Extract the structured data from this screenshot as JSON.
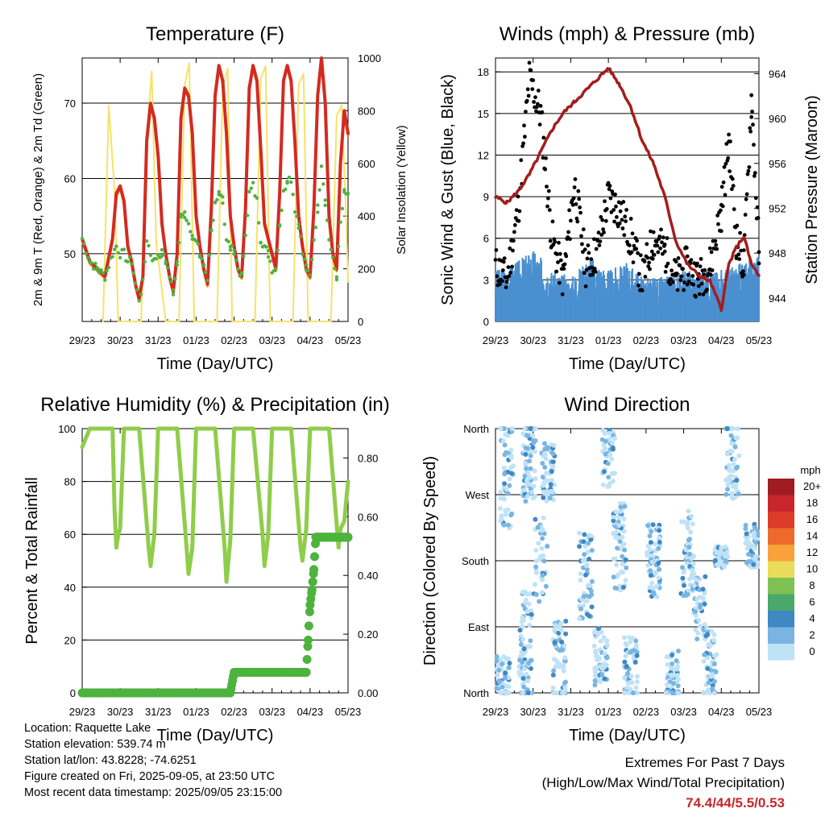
{
  "info": {
    "location": "Location: Raquette Lake",
    "elevation": "Station elevation: 539.74 m",
    "latlon": "Station lat/lon: 43.8228; -74.6251",
    "created": "Figure created on Fri, 2025-09-05, at 23:50 UTC",
    "recent": "Most recent data timestamp: 2025/09/05 23:15:00"
  },
  "extremes": {
    "line1": "Extremes For Past 7 Days",
    "line2": "(High/Low/Max Wind/Total Precipitation)",
    "values": "74.4/44/5.5/0.53",
    "color": "#c8262a"
  },
  "chart_data": [
    {
      "type": "line",
      "title": "Temperature (F)",
      "xlabel": "Time (Day/UTC)",
      "ylabel": "2m & 9m T (Red, Orange) & 2m Td (Green)",
      "y2label": "Solar Insolation (Yellow)",
      "x_ticks": [
        "29/23",
        "30/23",
        "31/23",
        "01/23",
        "02/23",
        "03/23",
        "04/23",
        "05/23"
      ],
      "ylim": [
        41,
        76
      ],
      "y_ticks": [
        50,
        60,
        70
      ],
      "y2lim": [
        0,
        1000
      ],
      "y2_ticks": [
        0,
        200,
        400,
        600,
        800,
        1000
      ],
      "colors": {
        "t2m": "#d42a20",
        "t9m": "#f07f1a",
        "td": "#4db33d",
        "solar": "#f6e26a"
      },
      "series": [
        {
          "key": "t2m",
          "x": [
            0,
            0.2,
            0.4,
            0.6,
            0.8,
            0.9,
            1.0,
            1.1,
            1.2,
            1.3,
            1.4,
            1.5,
            1.6,
            1.7,
            1.8,
            1.9,
            2.0,
            2.1,
            2.2,
            2.3,
            2.4,
            2.5,
            2.6,
            2.7,
            2.8,
            2.9,
            3.0,
            3.1,
            3.2,
            3.3,
            3.4,
            3.5,
            3.6,
            3.7,
            3.8,
            3.9,
            4.0,
            4.1,
            4.2,
            4.3,
            4.4,
            4.5,
            4.6,
            4.7,
            4.8,
            4.9,
            5.0,
            5.1,
            5.2,
            5.3,
            5.4,
            5.5,
            5.6,
            5.7,
            5.8,
            5.9,
            6.0,
            6.1,
            6.2,
            6.3,
            6.4,
            6.5,
            6.6,
            6.7,
            6.8,
            6.9,
            7.0
          ],
          "y": [
            52,
            49,
            48,
            47,
            52,
            58,
            59,
            57,
            51,
            49,
            46,
            44,
            47,
            65,
            70,
            68,
            63,
            54,
            50,
            47,
            45,
            50,
            68,
            72,
            71,
            66,
            55,
            51,
            48,
            46,
            56,
            71,
            75,
            73,
            66,
            55,
            51,
            48,
            47,
            56,
            72,
            75,
            73,
            64,
            54,
            52,
            50,
            48,
            58,
            73,
            75,
            73,
            65,
            55,
            51,
            48,
            47,
            56,
            71,
            76,
            70,
            55,
            50,
            48,
            62,
            69,
            66
          ]
        },
        {
          "key": "td",
          "x": [
            0,
            0.2,
            0.4,
            0.6,
            0.8,
            0.9,
            1.0,
            1.1,
            1.2,
            1.3,
            1.4,
            1.5,
            1.6,
            1.7,
            1.8,
            1.9,
            2.0,
            2.1,
            2.2,
            2.3,
            2.4,
            2.5,
            2.6,
            2.7,
            2.8,
            2.9,
            3.0,
            3.1,
            3.2,
            3.3,
            3.4,
            3.5,
            3.6,
            3.7,
            3.8,
            3.9,
            4.0,
            4.1,
            4.2,
            4.3,
            4.4,
            4.5,
            4.6,
            4.7,
            4.8,
            4.9,
            5.0,
            5.1,
            5.2,
            5.3,
            5.4,
            5.5,
            5.6,
            5.7,
            5.8,
            5.9,
            6.0,
            6.1,
            6.2,
            6.3,
            6.4,
            6.5,
            6.6,
            6.7,
            6.8,
            6.9,
            7.0
          ],
          "y": [
            52,
            49,
            48,
            47,
            50,
            51,
            50,
            50,
            49,
            49,
            46,
            44,
            46,
            52,
            50,
            49,
            50,
            50,
            49,
            47,
            45,
            49,
            55,
            55,
            54,
            52,
            52,
            50,
            48,
            46,
            53,
            57,
            58,
            57,
            52,
            51,
            50,
            48,
            47,
            53,
            58,
            59,
            57,
            52,
            51,
            50,
            48,
            48,
            54,
            58,
            60,
            60,
            56,
            54,
            50,
            48,
            47,
            52,
            56,
            62,
            57,
            52,
            49,
            47,
            54,
            58,
            58
          ]
        },
        {
          "key": "solar",
          "x": [
            0.55,
            0.7,
            0.85,
            0.95,
            1.3,
            1.55,
            1.7,
            1.83,
            1.95,
            2.2,
            2.55,
            2.7,
            2.82,
            2.95,
            3.2,
            3.55,
            3.7,
            3.83,
            3.95,
            4.2,
            4.55,
            4.7,
            4.83,
            4.95,
            5.2,
            5.55,
            5.7,
            5.83,
            5.95,
            6.2,
            6.55,
            6.7,
            6.83,
            6.95,
            7.0
          ],
          "y": [
            0,
            820,
            500,
            0,
            0,
            0,
            700,
            950,
            300,
            0,
            0,
            900,
            980,
            0,
            0,
            0,
            880,
            960,
            0,
            0,
            0,
            920,
            970,
            0,
            0,
            0,
            900,
            940,
            0,
            0,
            0,
            780,
            820,
            400,
            150
          ]
        }
      ]
    },
    {
      "type": "line",
      "title": "Winds (mph) & Pressure (mb)",
      "xlabel": "Time (Day/UTC)",
      "ylabel": "Sonic Wind & Gust (Blue, Black)",
      "y2label": "Station Pressure (Maroon)",
      "x_ticks": [
        "29/23",
        "30/23",
        "31/23",
        "01/23",
        "02/23",
        "03/23",
        "04/23",
        "05/23"
      ],
      "ylim": [
        0,
        19
      ],
      "y_ticks": [
        0,
        3,
        6,
        9,
        12,
        15,
        18
      ],
      "y2lim": [
        941.9,
        965.4
      ],
      "y2_ticks": [
        944,
        948,
        952,
        956,
        960,
        964
      ],
      "colors": {
        "wind": "#4a8fd0",
        "gust": "#000000",
        "pressure": "#a31d1d"
      },
      "series": [
        {
          "key": "pressure",
          "x": [
            0,
            0.3,
            0.6,
            0.9,
            1.2,
            1.5,
            1.8,
            2.1,
            2.4,
            2.7,
            3.0,
            3.3,
            3.6,
            3.9,
            4.2,
            4.5,
            4.8,
            5.1,
            5.4,
            5.7,
            6.0,
            6.2,
            6.4,
            6.6,
            6.8,
            7.0
          ],
          "y": [
            953,
            952.5,
            953.5,
            955,
            957,
            959,
            960.5,
            961.5,
            962.5,
            963.5,
            964.5,
            963,
            961,
            958,
            956,
            953,
            949,
            947,
            946,
            945.5,
            943,
            947,
            948.5,
            949.5,
            947,
            946
          ]
        },
        {
          "key": "wind",
          "x": [
            0,
            0.5,
            1.0,
            1.5,
            2.0,
            2.5,
            3.0,
            3.5,
            4.0,
            4.5,
            5.0,
            5.5,
            6.0,
            6.5,
            7.0
          ],
          "y": [
            2.5,
            3,
            4,
            2.5,
            2,
            3.5,
            2.5,
            3,
            2,
            2,
            2.5,
            2.5,
            2.5,
            3,
            3.5
          ]
        },
        {
          "key": "gust",
          "x": [
            0,
            0.3,
            0.6,
            0.9,
            1.2,
            1.5,
            1.8,
            2.1,
            2.4,
            2.7,
            3.0,
            3.3,
            3.6,
            3.9,
            4.2,
            4.5,
            4.8,
            5.1,
            5.4,
            5.7,
            6.0,
            6.2,
            6.4,
            6.6,
            6.8,
            7.0
          ],
          "y": [
            4,
            3,
            8,
            17.5,
            15,
            6,
            3,
            10,
            4,
            5,
            9,
            8,
            6,
            3,
            6,
            5,
            3,
            4,
            3,
            4,
            8,
            13,
            6,
            4,
            16,
            5
          ]
        }
      ]
    },
    {
      "type": "line",
      "title": "Relative Humidity (%) & Precipitation (in)",
      "xlabel": "Time (Day/UTC)",
      "ylabel": "Percent & Total Rainfall",
      "x_ticks": [
        "29/23",
        "30/23",
        "31/23",
        "01/23",
        "02/23",
        "03/23",
        "04/23",
        "05/23"
      ],
      "ylim": [
        0,
        100
      ],
      "y_ticks": [
        0,
        20,
        40,
        60,
        80,
        100
      ],
      "y2lim": [
        0,
        0.9
      ],
      "y2_ticks": [
        "0.00",
        "0.20",
        "0.40",
        "0.60",
        "0.80"
      ],
      "colors": {
        "rh": "#8fcd4a",
        "precip": "#4db33d"
      },
      "series": [
        {
          "key": "rh",
          "x": [
            0,
            0.2,
            0.3,
            0.6,
            0.8,
            0.85,
            0.9,
            0.95,
            1.0,
            1.1,
            1.2,
            1.5,
            1.75,
            1.8,
            1.9,
            2.0,
            2.1,
            2.2,
            2.5,
            2.75,
            2.8,
            2.9,
            3.0,
            3.1,
            3.2,
            3.5,
            3.75,
            3.8,
            3.9,
            4.0,
            4.1,
            4.2,
            4.5,
            4.75,
            4.8,
            4.9,
            5.0,
            5.1,
            5.2,
            5.5,
            5.75,
            5.8,
            5.9,
            6.0,
            6.1,
            6.2,
            6.5,
            6.75,
            6.8,
            6.9,
            7.0
          ],
          "y": [
            93,
            100,
            100,
            100,
            100,
            70,
            55,
            60,
            62,
            100,
            100,
            100,
            55,
            48,
            60,
            100,
            100,
            100,
            100,
            55,
            45,
            55,
            100,
            100,
            100,
            100,
            55,
            42,
            58,
            100,
            100,
            100,
            100,
            60,
            48,
            60,
            100,
            100,
            100,
            100,
            55,
            50,
            62,
            100,
            100,
            100,
            100,
            55,
            62,
            65,
            80
          ]
        },
        {
          "key": "precip",
          "x": [
            0,
            1,
            2,
            3,
            3.9,
            4.0,
            4.1,
            5.0,
            5.9,
            5.95,
            6.0,
            6.05,
            6.1,
            6.15,
            6.2,
            6.5,
            7.0
          ],
          "y": [
            0,
            0,
            0,
            0,
            0,
            0.07,
            0.07,
            0.07,
            0.07,
            0.18,
            0.3,
            0.35,
            0.42,
            0.53,
            0.53,
            0.53,
            0.53
          ]
        }
      ]
    },
    {
      "type": "scatter",
      "title": "Wind Direction",
      "xlabel": "Time (Day/UTC)",
      "ylabel": "Direction (Colored By Speed)",
      "x_ticks": [
        "29/23",
        "30/23",
        "31/23",
        "01/23",
        "02/23",
        "03/23",
        "04/23",
        "05/23"
      ],
      "ylim": [
        0,
        360
      ],
      "y_ticks": [
        "North",
        "East",
        "South",
        "West",
        "North"
      ],
      "legend_title": "mph",
      "legend_labels": [
        "20+",
        "18",
        "16",
        "14",
        "12",
        "10",
        "8",
        "6",
        "4",
        "2",
        "0"
      ],
      "legend_colors": [
        "#a01c20",
        "#c8262a",
        "#de3a2a",
        "#ee6a2c",
        "#f9a23a",
        "#e8dc5a",
        "#7ec256",
        "#4aa86a",
        "#3f88c4",
        "#7ab5e2",
        "#bfe2f7"
      ],
      "speed_levels": [
        [
          0,
          2
        ],
        [
          2,
          4
        ],
        [
          4,
          6
        ]
      ],
      "level_colors": [
        "#bfe2f7",
        "#7ab5e2",
        "#3f88c4"
      ]
    }
  ]
}
